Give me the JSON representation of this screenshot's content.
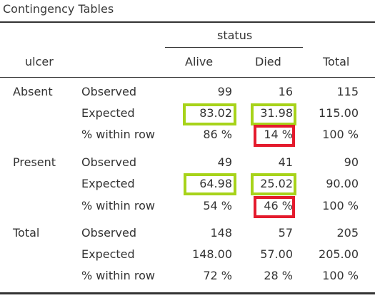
{
  "title": "Contingency Tables",
  "header": {
    "spanner": "status",
    "row_var": "ulcer",
    "columns": [
      "Alive",
      "Died"
    ],
    "total": "Total"
  },
  "rows": [
    {
      "group": "Absent",
      "observed": {
        "label": "Observed",
        "alive": "99",
        "died": "16",
        "total": "115"
      },
      "expected": {
        "label": "Expected",
        "alive": "83.02",
        "died": "31.98",
        "total": "115.00"
      },
      "pct": {
        "label": "% within row",
        "alive": "86 %",
        "died": "14 %",
        "total": "100 %"
      }
    },
    {
      "group": "Present",
      "observed": {
        "label": "Observed",
        "alive": "49",
        "died": "41",
        "total": "90"
      },
      "expected": {
        "label": "Expected",
        "alive": "64.98",
        "died": "25.02",
        "total": "90.00"
      },
      "pct": {
        "label": "% within row",
        "alive": "54 %",
        "died": "46 %",
        "total": "100 %"
      }
    },
    {
      "group": "Total",
      "observed": {
        "label": "Observed",
        "alive": "148",
        "died": "57",
        "total": "205"
      },
      "expected": {
        "label": "Expected",
        "alive": "148.00",
        "died": "57.00",
        "total": "205.00"
      },
      "pct": {
        "label": "% within row",
        "alive": "72 %",
        "died": "28 %",
        "total": "100 %"
      }
    }
  ],
  "highlight_colors": {
    "green": "#a7d31a",
    "red": "#e41b2d"
  }
}
